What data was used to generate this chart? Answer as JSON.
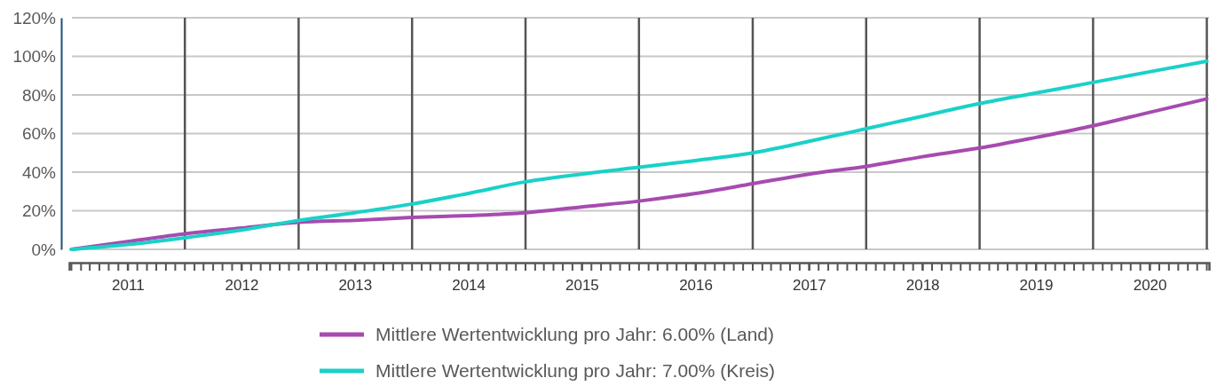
{
  "chart_data": {
    "type": "line",
    "x": [
      "2011-01",
      "2011-07",
      "2012-01",
      "2012-07",
      "2013-01",
      "2013-07",
      "2014-01",
      "2014-07",
      "2015-01",
      "2015-07",
      "2016-01",
      "2016-07",
      "2017-01",
      "2017-07",
      "2018-01",
      "2018-07",
      "2019-01",
      "2019-07",
      "2020-01",
      "2020-07",
      "2021-01"
    ],
    "series": [
      {
        "name": "Mittlere Wertentwicklung pro Jahr: 6.00% (Land)",
        "color": "#a64bb0",
        "values": [
          0,
          4,
          8,
          11,
          14,
          15,
          16.5,
          17.5,
          19,
          22,
          25,
          29,
          34,
          39,
          43,
          48,
          52.5,
          58,
          64,
          71,
          78
        ]
      },
      {
        "name": "Mittlere Wertentwicklung pro Jahr: 7.00% (Kreis)",
        "color": "#1ad1c8",
        "values": [
          0,
          2.5,
          6,
          10,
          15,
          19,
          23.5,
          29,
          35,
          39,
          42.5,
          46,
          50,
          56,
          62.5,
          69,
          75.5,
          81,
          86.5,
          92,
          97.5
        ]
      }
    ],
    "xlim": [
      "2010-12-25",
      "2021-01-08"
    ],
    "xticks": [
      {
        "value": "2011-07",
        "label": "2011"
      },
      {
        "value": "2012-07",
        "label": "2012"
      },
      {
        "value": "2013-07",
        "label": "2013"
      },
      {
        "value": "2014-07",
        "label": "2014"
      },
      {
        "value": "2015-07",
        "label": "2015"
      },
      {
        "value": "2016-07",
        "label": "2016"
      },
      {
        "value": "2017-07",
        "label": "2017"
      },
      {
        "value": "2018-07",
        "label": "2018"
      },
      {
        "value": "2019-07",
        "label": "2019"
      },
      {
        "value": "2020-07",
        "label": "2020"
      }
    ],
    "ylim": [
      0,
      120
    ],
    "yticks": [
      {
        "value": 0,
        "label": "0%"
      },
      {
        "value": 20,
        "label": "20%"
      },
      {
        "value": 40,
        "label": "40%"
      },
      {
        "value": 60,
        "label": "60%"
      },
      {
        "value": 80,
        "label": "80%"
      },
      {
        "value": 100,
        "label": "100%"
      },
      {
        "value": 120,
        "label": "120%"
      }
    ],
    "ref_lines": [
      {
        "axis": "x",
        "value": "2012-01",
        "color": "#555555"
      },
      {
        "axis": "x",
        "value": "2013-01",
        "color": "#555555"
      },
      {
        "axis": "x",
        "value": "2014-01",
        "color": "#555555"
      },
      {
        "axis": "x",
        "value": "2015-01",
        "color": "#555555"
      },
      {
        "axis": "x",
        "value": "2016-01",
        "color": "#555555"
      },
      {
        "axis": "x",
        "value": "2017-01",
        "color": "#555555"
      },
      {
        "axis": "x",
        "value": "2018-01",
        "color": "#555555"
      },
      {
        "axis": "x",
        "value": "2019-01",
        "color": "#555555"
      },
      {
        "axis": "x",
        "value": "2020-01",
        "color": "#555555"
      },
      {
        "axis": "x",
        "value": "2021-01",
        "color": "#555555"
      }
    ],
    "grid": "y",
    "legend": "bottom"
  }
}
